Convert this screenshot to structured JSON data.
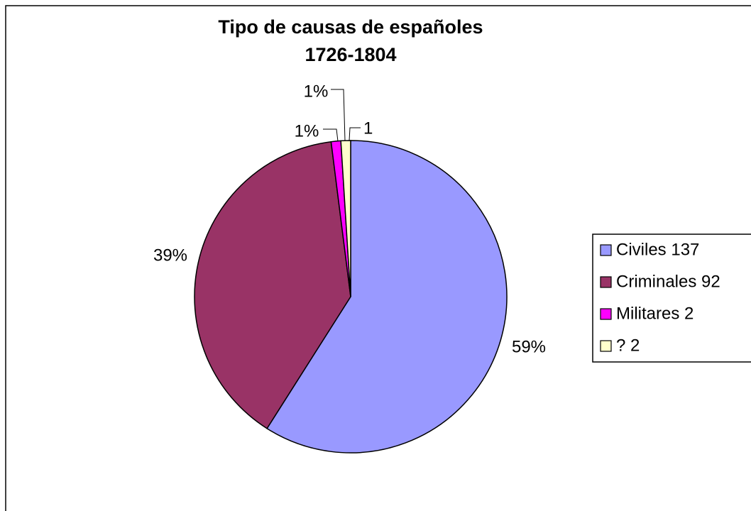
{
  "chart_data": {
    "type": "pie",
    "title": "Tipo de causas de españoles",
    "subtitle": "1726-1804",
    "categories": [
      "Civiles 137",
      "Criminales 92",
      "Militares 2",
      "? 2"
    ],
    "values": [
      59,
      39,
      1,
      1
    ],
    "value_labels": [
      "59%",
      "39%",
      "1%",
      "1%"
    ],
    "colors": [
      "#9999ff",
      "#993366",
      "#ff00ff",
      "#ffffcc"
    ],
    "annotation": "1",
    "legend": "right"
  }
}
